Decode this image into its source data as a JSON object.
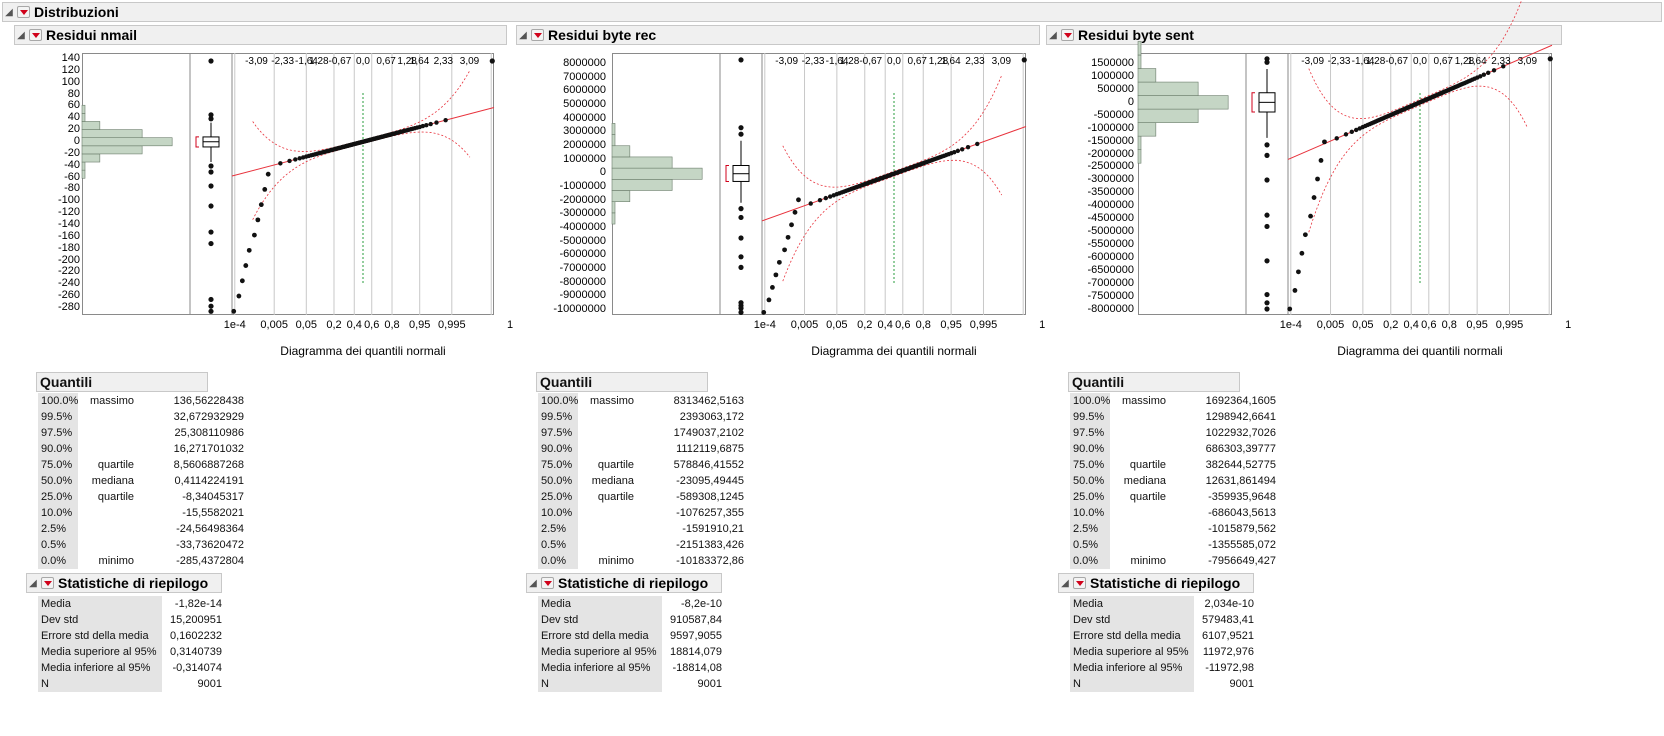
{
  "main_title": "Distribuzioni",
  "panels": [
    {
      "title": "Residui nmail",
      "y_ticks": [
        "140",
        "120",
        "100",
        "80",
        "60",
        "40",
        "20",
        "0",
        "-20",
        "-40",
        "-60",
        "-80",
        "-100",
        "-120",
        "-140",
        "-160",
        "-180",
        "-200",
        "-220",
        "-240",
        "-260",
        "-280"
      ],
      "y_range": [
        -290,
        145
      ],
      "x_caption": "Diagramma dei quantili normali",
      "top_ticks": [
        "-3,09",
        "-2,33",
        "-1,64",
        "1,28",
        "-0,67",
        "0,0",
        "0,67",
        "1,28",
        "1,64",
        "2,33",
        "3,09"
      ],
      "bottom_ticks": [
        "1e-4",
        "0,005",
        "0,05",
        "0,2",
        "0,4",
        "0,6",
        "0,8",
        "0,95",
        "0,995",
        "1"
      ],
      "quantiles_title": "Quantili",
      "quantiles": [
        {
          "pct": "100.0%",
          "name": "massimo",
          "value": "136,56228438"
        },
        {
          "pct": "99.5%",
          "name": "",
          "value": "32,672932929"
        },
        {
          "pct": "97.5%",
          "name": "",
          "value": "25,308110986"
        },
        {
          "pct": "90.0%",
          "name": "",
          "value": "16,271701032"
        },
        {
          "pct": "75.0%",
          "name": "quartile",
          "value": "8,5606887268"
        },
        {
          "pct": "50.0%",
          "name": "mediana",
          "value": "0,4114224191"
        },
        {
          "pct": "25.0%",
          "name": "quartile",
          "value": "-8,34045317"
        },
        {
          "pct": "10.0%",
          "name": "",
          "value": "-15,5582021"
        },
        {
          "pct": "2.5%",
          "name": "",
          "value": "-24,56498364"
        },
        {
          "pct": "0.5%",
          "name": "",
          "value": "-33,73620472"
        },
        {
          "pct": "0.0%",
          "name": "minimo",
          "value": "-285,4372804"
        }
      ],
      "stats_title": "Statistiche di riepilogo",
      "stats": [
        {
          "name": "Media",
          "value": "-1,82e-14"
        },
        {
          "name": "Dev std",
          "value": "15,200951"
        },
        {
          "name": "Errore std della media",
          "value": "0,1602232"
        },
        {
          "name": "Media superiore al 95%",
          "value": "0,3140739"
        },
        {
          "name": "Media inferiore al 95%",
          "value": "-0,314074"
        },
        {
          "name": "N",
          "value": "9001"
        }
      ]
    },
    {
      "title": "Residui byte rec",
      "y_ticks": [
        "8000000",
        "7000000",
        "6000000",
        "5000000",
        "4000000",
        "3000000",
        "2000000",
        "1000000",
        "0",
        "-1000000",
        "-2000000",
        "-3000000",
        "-4000000",
        "-5000000",
        "-6000000",
        "-7000000",
        "-8000000",
        "-9000000",
        "-10000000"
      ],
      "y_range": [
        -10300000,
        8600000
      ],
      "x_caption": "Diagramma dei quantili normali",
      "top_ticks": [
        "-3,09",
        "-2,33",
        "-1,64",
        "1,28",
        "-0,67",
        "0,0",
        "0,67",
        "1,28",
        "1,64",
        "2,33",
        "3,09"
      ],
      "bottom_ticks": [
        "1e-4",
        "0,005",
        "0,05",
        "0,2",
        "0,4",
        "0,6",
        "0,8",
        "0,95",
        "0,995",
        "1"
      ],
      "quantiles_title": "Quantili",
      "quantiles": [
        {
          "pct": "100.0%",
          "name": "massimo",
          "value": "8313462,5163"
        },
        {
          "pct": "99.5%",
          "name": "",
          "value": "2393063,172"
        },
        {
          "pct": "97.5%",
          "name": "",
          "value": "1749037,2102"
        },
        {
          "pct": "90.0%",
          "name": "",
          "value": "1112119,6875"
        },
        {
          "pct": "75.0%",
          "name": "quartile",
          "value": "578846,41552"
        },
        {
          "pct": "50.0%",
          "name": "mediana",
          "value": "-23095,49445"
        },
        {
          "pct": "25.0%",
          "name": "quartile",
          "value": "-589308,1245"
        },
        {
          "pct": "10.0%",
          "name": "",
          "value": "-1076257,355"
        },
        {
          "pct": "2.5%",
          "name": "",
          "value": "-1591910,21"
        },
        {
          "pct": "0.5%",
          "name": "",
          "value": "-2151383,426"
        },
        {
          "pct": "0.0%",
          "name": "minimo",
          "value": "-10183372,86"
        }
      ],
      "stats_title": "Statistiche di riepilogo",
      "stats": [
        {
          "name": "Media",
          "value": "-8,2e-10"
        },
        {
          "name": "Dev std",
          "value": "910587,84"
        },
        {
          "name": "Errore std della media",
          "value": "9597,9055"
        },
        {
          "name": "Media superiore al 95%",
          "value": "18814,079"
        },
        {
          "name": "Media inferiore al 95%",
          "value": "-18814,08"
        },
        {
          "name": "N",
          "value": "9001"
        }
      ]
    },
    {
      "title": "Residui byte sent",
      "y_ticks": [
        "1500000",
        "1000000",
        "500000",
        "0",
        "-500000",
        "-1000000",
        "-1500000",
        "-2000000",
        "-2500000",
        "-3000000",
        "-3500000",
        "-4000000",
        "-4500000",
        "-5000000",
        "-5500000",
        "-6000000",
        "-6500000",
        "-7000000",
        "-7500000",
        "-8000000"
      ],
      "y_range": [
        -8150000,
        1800000
      ],
      "x_caption": "Diagramma dei quantili normali",
      "top_ticks": [
        "-3,09",
        "-2,33",
        "-1,64",
        "1,28",
        "-0,67",
        "0,0",
        "0,67",
        "1,28",
        "1,64",
        "2,33",
        "3,09"
      ],
      "bottom_ticks": [
        "1e-4",
        "0,005",
        "0,05",
        "0,2",
        "0,4",
        "0,6",
        "0,8",
        "0,95",
        "0,995",
        "1"
      ],
      "quantiles_title": "Quantili",
      "quantiles": [
        {
          "pct": "100.0%",
          "name": "massimo",
          "value": "1692364,1605"
        },
        {
          "pct": "99.5%",
          "name": "",
          "value": "1298942,6641"
        },
        {
          "pct": "97.5%",
          "name": "",
          "value": "1022932,7026"
        },
        {
          "pct": "90.0%",
          "name": "",
          "value": "686303,39777"
        },
        {
          "pct": "75.0%",
          "name": "quartile",
          "value": "382644,52775"
        },
        {
          "pct": "50.0%",
          "name": "mediana",
          "value": "12631,861494"
        },
        {
          "pct": "25.0%",
          "name": "quartile",
          "value": "-359935,9648"
        },
        {
          "pct": "10.0%",
          "name": "",
          "value": "-686043,5613"
        },
        {
          "pct": "2.5%",
          "name": "",
          "value": "-1015879,562"
        },
        {
          "pct": "0.5%",
          "name": "",
          "value": "-1355585,072"
        },
        {
          "pct": "0.0%",
          "name": "minimo",
          "value": "-7956649,427"
        }
      ],
      "stats_title": "Statistiche di riepilogo",
      "stats": [
        {
          "name": "Media",
          "value": "2,034e-10"
        },
        {
          "name": "Dev std",
          "value": "579483,41"
        },
        {
          "name": "Errore std della media",
          "value": "6107,9521"
        },
        {
          "name": "Media superiore al 95%",
          "value": "11972,976"
        },
        {
          "name": "Media inferiore al 95%",
          "value": "-11972,98"
        },
        {
          "name": "N",
          "value": "9001"
        }
      ]
    }
  ],
  "colors": {
    "header_bg": "#f0f0f0",
    "histogram_fill": "#c5d6c5",
    "fit_line": "#e8323c",
    "median_line": "#2a9d3c",
    "points": "#111111"
  }
}
